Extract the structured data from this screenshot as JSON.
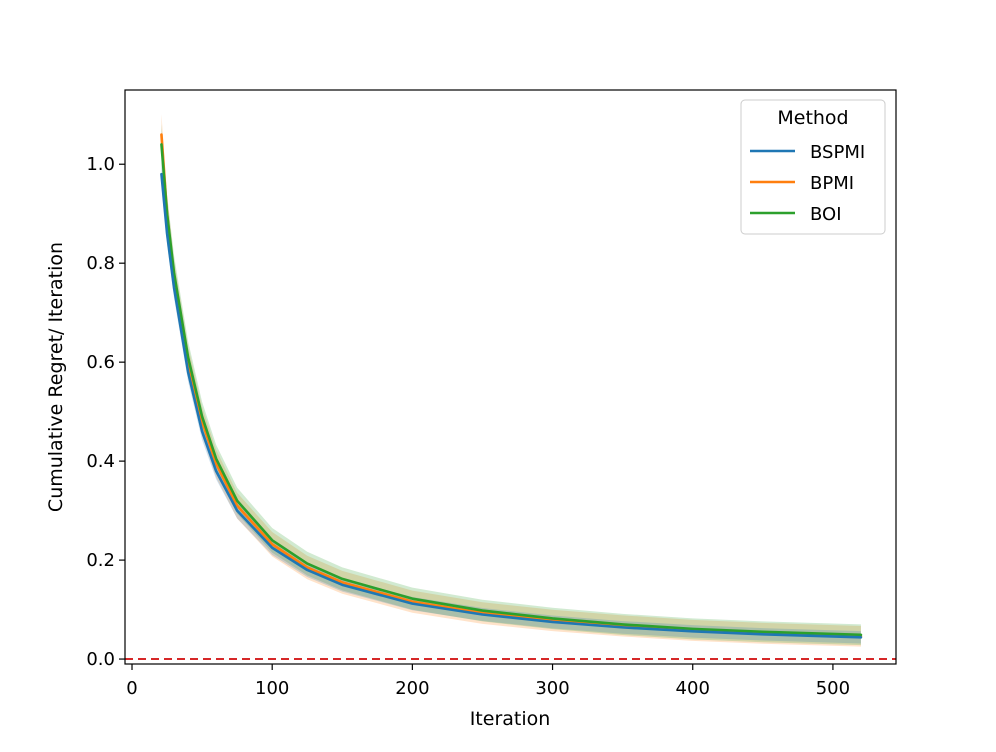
{
  "chart_data": {
    "type": "line",
    "title": "",
    "xlabel": "Iteration",
    "ylabel": "Cumulative Regret/ Iteration",
    "xlim": [
      -5,
      545
    ],
    "ylim": [
      -0.01,
      1.15
    ],
    "xticks": [
      0,
      100,
      200,
      300,
      400,
      500
    ],
    "xtick_labels": [
      "0",
      "100",
      "200",
      "300",
      "400",
      "500"
    ],
    "yticks": [
      0.0,
      0.2,
      0.4,
      0.6,
      0.8,
      1.0
    ],
    "ytick_labels": [
      "0.0",
      "0.2",
      "0.4",
      "0.6",
      "0.8",
      "1.0"
    ],
    "grid": false,
    "legend": {
      "title": "Method",
      "placement": "top-right"
    },
    "series": [
      {
        "name": "BSPMI",
        "color": "#1f77b4",
        "x": [
          21,
          25,
          30,
          40,
          50,
          60,
          75,
          100,
          125,
          150,
          200,
          250,
          300,
          350,
          400,
          450,
          520
        ],
        "y": [
          0.98,
          0.86,
          0.75,
          0.58,
          0.46,
          0.38,
          0.3,
          0.225,
          0.18,
          0.15,
          0.112,
          0.09,
          0.075,
          0.064,
          0.056,
          0.05,
          0.044
        ],
        "band": 0.012
      },
      {
        "name": "BPMI",
        "color": "#ff7f0e",
        "x": [
          21,
          25,
          30,
          40,
          50,
          60,
          75,
          100,
          125,
          150,
          200,
          250,
          300,
          350,
          400,
          450,
          520
        ],
        "y": [
          1.06,
          0.9,
          0.77,
          0.6,
          0.48,
          0.395,
          0.31,
          0.232,
          0.185,
          0.155,
          0.116,
          0.093,
          0.078,
          0.067,
          0.058,
          0.052,
          0.046
        ],
        "band": 0.02
      },
      {
        "name": "BOI",
        "color": "#2ca02c",
        "x": [
          21,
          25,
          30,
          40,
          50,
          60,
          75,
          100,
          125,
          150,
          200,
          250,
          300,
          350,
          400,
          450,
          520
        ],
        "y": [
          1.04,
          0.9,
          0.78,
          0.61,
          0.49,
          0.405,
          0.32,
          0.24,
          0.193,
          0.162,
          0.122,
          0.098,
          0.082,
          0.07,
          0.061,
          0.055,
          0.049
        ],
        "band": 0.02
      }
    ],
    "reference_line": {
      "y": 0.0,
      "color": "#d62728",
      "style": "dashed"
    }
  }
}
